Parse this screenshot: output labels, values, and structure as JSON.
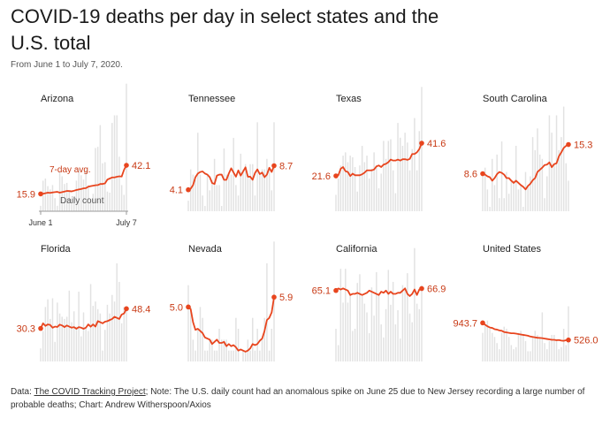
{
  "title": "COVID-19 deaths per day in select states and the U.S. total",
  "subtitle": "From June 1 to July 7, 2020.",
  "footer": {
    "data_label": "Data: ",
    "source_link": "The COVID Tracking Project",
    "note": "; Note: The U.S. daily count had an anomalous spike on June 25 due to New Jersey recording a large number of probable deaths; Chart: Andrew Witherspoon/Axios"
  },
  "colors": {
    "line": "#e8451e",
    "bars": "#e2e2e2",
    "axis": "#999999",
    "text": "#222222"
  },
  "chart_data": [
    {
      "type": "bar+line",
      "state": "Arizona",
      "start_label": "15.9",
      "end_label": "42.1",
      "xtick_start": "June 1",
      "xtick_end": "July 7",
      "line_annotation": "7-day avg.",
      "bar_annotation": "Daily count",
      "ylim": [
        0,
        120
      ],
      "avg": [
        15.9,
        16,
        16.5,
        17,
        16.8,
        17.2,
        17.5,
        17.8,
        17,
        17.5,
        18,
        18.6,
        18.5,
        18.2,
        18.8,
        19.5,
        20,
        20.4,
        21,
        21.2,
        22.5,
        23,
        23.4,
        23.8,
        24,
        25,
        25,
        25.5,
        29,
        30,
        31,
        31,
        31.6,
        32,
        31.8,
        38,
        42.1
      ],
      "daily": [
        5,
        28,
        30,
        23,
        20,
        24,
        12,
        5,
        36,
        32,
        25,
        26,
        19,
        8,
        13,
        28,
        38,
        33,
        29,
        38,
        24,
        8,
        16,
        58,
        59,
        79,
        44,
        45,
        18,
        17,
        81,
        88,
        88,
        50,
        24,
        15,
        117
      ]
    },
    {
      "type": "bar+line",
      "state": "Tennessee",
      "start_label": "4.1",
      "end_label": "8.7",
      "ylim": [
        0,
        25
      ],
      "avg": [
        4.1,
        4.3,
        5,
        6.5,
        7.2,
        7.5,
        7.6,
        7.2,
        7,
        6.5,
        5.4,
        5.2,
        6.8,
        7,
        7,
        6,
        6,
        7.2,
        8.2,
        7.4,
        6.6,
        7.8,
        6.8,
        7.6,
        8.4,
        6.6,
        6.6,
        6,
        7.3,
        8,
        7.1,
        7.4,
        6.5,
        7,
        8.3,
        7.5,
        8.7
      ],
      "daily": [
        2,
        8,
        7,
        6,
        15,
        7,
        3,
        1,
        7,
        4,
        6,
        10,
        5,
        5,
        1,
        12,
        7,
        7,
        7,
        14,
        5,
        3,
        11,
        8,
        9,
        7,
        9,
        9,
        3,
        17,
        7,
        8,
        8,
        10,
        8,
        4,
        17
      ]
    },
    {
      "type": "bar+line",
      "state": "Texas",
      "start_label": "21.6",
      "end_label": "41.6",
      "ylim": [
        0,
        80
      ],
      "avg": [
        21.6,
        22,
        26,
        27,
        24.5,
        24,
        21.5,
        23,
        22,
        22,
        22,
        22.6,
        23.6,
        25,
        25,
        25,
        25.5,
        27.4,
        28,
        27,
        28.5,
        29,
        30,
        31.6,
        31,
        31,
        31.6,
        31,
        31.8,
        31.8,
        31.4,
        32,
        35,
        35,
        36,
        38,
        41.6
      ],
      "daily": [
        10,
        20,
        28,
        34,
        36,
        30,
        34,
        33,
        27,
        12,
        28,
        40,
        30,
        34,
        20,
        26,
        36,
        28,
        14,
        23,
        43,
        32,
        43,
        44,
        25,
        11,
        54,
        45,
        40,
        48,
        42,
        25,
        38,
        57,
        25,
        49,
        76
      ]
    },
    {
      "type": "bar+line",
      "state": "South Carolina",
      "start_label": "8.6",
      "end_label": "15.3",
      "ylim": [
        0,
        30
      ],
      "avg": [
        8.6,
        8.4,
        8,
        7.8,
        7,
        7.6,
        8.5,
        9,
        8.8,
        8.4,
        7.6,
        7.6,
        7,
        6.5,
        7,
        6.5,
        6,
        5.6,
        5,
        5.8,
        6.3,
        7.1,
        7.6,
        9,
        9.5,
        10,
        10.6,
        10.7,
        11.2,
        10.1,
        10.8,
        11,
        12.6,
        13.5,
        14.5,
        15,
        15.3
      ],
      "daily": [
        8,
        10,
        5,
        1,
        12,
        6,
        13,
        3,
        16,
        3,
        9,
        4,
        7,
        7,
        15,
        5,
        6,
        1,
        9,
        6,
        8,
        17,
        14,
        19,
        13,
        12,
        3,
        8,
        22,
        18,
        11,
        22,
        14,
        17,
        24,
        11,
        7
      ]
    },
    {
      "type": "bar+line",
      "state": "Florida",
      "start_label": "30.3",
      "end_label": "48.4",
      "ylim": [
        0,
        120
      ],
      "avg": [
        30.3,
        35,
        32.6,
        34,
        33.5,
        31,
        32,
        31.6,
        33.8,
        33,
        31.5,
        33,
        32,
        31,
        31.5,
        30,
        31.5,
        31,
        30,
        31,
        34,
        31.9,
        34,
        32,
        37,
        36,
        35,
        36.5,
        37,
        38,
        39,
        41,
        40,
        39,
        43,
        44,
        48.4
      ],
      "daily": [
        12,
        28,
        50,
        57,
        39,
        58,
        18,
        54,
        44,
        41,
        39,
        41,
        65,
        36,
        46,
        32,
        64,
        23,
        45,
        30,
        28,
        71,
        51,
        55,
        48,
        44,
        10,
        29,
        52,
        44,
        61,
        55,
        90,
        73,
        35,
        50,
        47
      ]
    },
    {
      "type": "bar+line",
      "state": "Nevada",
      "start_label": "5.0",
      "end_label": "5.9",
      "ylim": [
        0,
        12
      ],
      "avg": [
        5,
        4.8,
        3.6,
        2.9,
        3,
        2.8,
        2.6,
        2.2,
        2.1,
        2,
        1.6,
        1.8,
        2,
        1.7,
        1.7,
        1.8,
        1.4,
        1.6,
        1.4,
        1.5,
        1.3,
        1,
        1.1,
        1,
        0.9,
        1,
        1.2,
        1.6,
        1.5,
        1.6,
        1.9,
        2.1,
        2.8,
        3.8,
        4,
        4.5,
        5.9
      ],
      "daily": [
        7,
        5,
        2,
        1,
        3,
        5,
        4,
        1,
        1,
        2,
        2,
        1,
        1,
        3,
        2,
        2,
        2,
        1,
        1,
        1,
        4,
        3,
        0,
        1,
        1,
        2,
        1,
        4,
        1,
        3,
        1,
        2,
        4,
        9,
        1,
        3,
        11
      ]
    },
    {
      "type": "bar+line",
      "state": "California",
      "start_label": "65.1",
      "end_label": "66.9",
      "ylim": [
        0,
        120
      ],
      "avg": [
        65.1,
        67,
        66,
        67,
        66,
        65,
        61,
        62,
        62,
        63,
        62,
        61,
        62,
        63,
        65,
        64,
        63,
        62,
        61,
        64,
        63,
        65,
        62,
        64,
        62,
        62,
        63,
        63,
        65,
        67,
        62,
        60,
        62,
        66,
        61,
        66,
        66.9
      ],
      "daily": [
        30,
        15,
        85,
        54,
        85,
        54,
        61,
        28,
        30,
        72,
        80,
        60,
        53,
        45,
        26,
        68,
        42,
        82,
        61,
        34,
        22,
        48,
        84,
        52,
        73,
        34,
        47,
        21,
        70,
        68,
        81,
        44,
        36,
        104,
        53,
        48,
        70
      ]
    },
    {
      "type": "bar+line",
      "state": "United States",
      "start_label": "943.7",
      "end_label": "526.0",
      "ylim": [
        0,
        3200
      ],
      "avg": [
        943.7,
        900,
        860,
        830,
        820,
        790,
        780,
        760,
        750,
        720,
        710,
        700,
        690,
        690,
        680,
        670,
        660,
        650,
        640,
        630,
        610,
        600,
        590,
        580,
        575,
        570,
        560,
        550,
        540,
        530,
        530,
        520,
        525,
        510,
        505,
        520,
        526
      ],
      "daily": [
        700,
        900,
        1000,
        800,
        700,
        600,
        450,
        300,
        700,
        850,
        800,
        600,
        400,
        300,
        350,
        700,
        750,
        650,
        500,
        250,
        250,
        600,
        750,
        650,
        600,
        1200,
        450,
        300,
        500,
        650,
        650,
        500,
        300,
        350,
        800,
        400,
        1350
      ]
    }
  ]
}
